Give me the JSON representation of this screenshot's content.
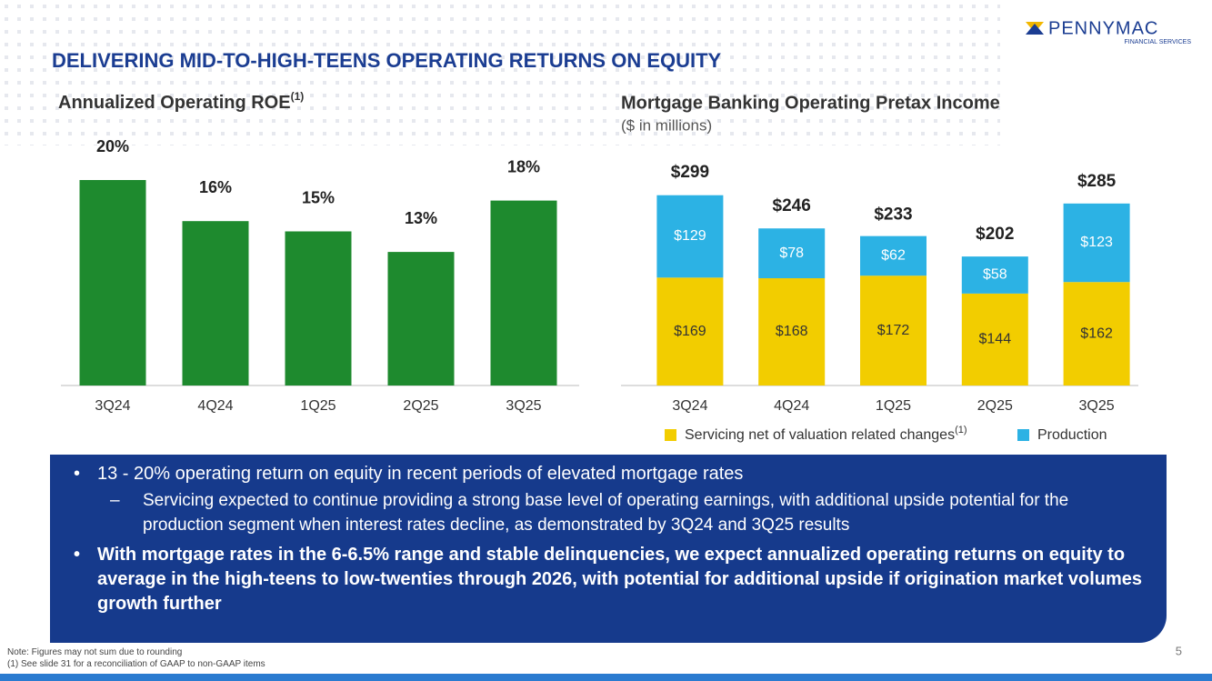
{
  "header": {
    "title": "DELIVERING MID-TO-HIGH-TEENS OPERATING RETURNS ON EQUITY",
    "logo": "PENNYMAC",
    "logo_sub": "FINANCIAL SERVICES"
  },
  "chart_data": [
    {
      "type": "bar",
      "title": "Annualized Operating ROE",
      "title_note": "(1)",
      "categories": [
        "3Q24",
        "4Q24",
        "1Q25",
        "2Q25",
        "3Q25"
      ],
      "values": [
        20,
        16,
        15,
        13,
        18
      ],
      "value_labels": [
        "20%",
        "16%",
        "15%",
        "13%",
        "18%"
      ],
      "color": "#1e8a2e"
    },
    {
      "type": "stacked_bar",
      "title": "Mortgage Banking Operating Pretax Income",
      "subtitle": "($ in millions)",
      "categories": [
        "3Q24",
        "4Q24",
        "1Q25",
        "2Q25",
        "3Q25"
      ],
      "series": [
        {
          "name": "Servicing net of valuation related changes",
          "name_note": "(1)",
          "color": "#f2cd00",
          "values": [
            169,
            168,
            172,
            144,
            162
          ],
          "value_labels": [
            "$169",
            "$168",
            "$172",
            "$144",
            "$162"
          ]
        },
        {
          "name": "Production",
          "color": "#2cb2e4",
          "values": [
            129,
            78,
            62,
            58,
            123
          ],
          "value_labels": [
            "$129",
            "$78",
            "$62",
            "$58",
            "$123"
          ]
        }
      ],
      "totals": [
        299,
        246,
        233,
        202,
        285
      ],
      "total_labels": [
        "$299",
        "$246",
        "$233",
        "$202",
        "$285"
      ]
    }
  ],
  "bullets": [
    {
      "text": "13 - 20% operating return on equity in recent periods of elevated mortgage rates",
      "sub": [
        "Servicing expected to continue providing a strong base level of operating earnings, with additional upside potential for the production segment when interest rates decline, as demonstrated by 3Q24 and 3Q25 results"
      ]
    },
    {
      "text": "With mortgage rates in the 6-6.5% range and stable delinquencies, we expect annualized operating returns on equity to average in the high-teens to low-twenties through 2026, with potential for additional upside if origination market volumes growth further"
    }
  ],
  "notes": [
    "Note: Figures may not sum due to rounding",
    "(1) See slide 31 for a reconciliation of GAAP to non-GAAP items"
  ],
  "page_number": "5"
}
